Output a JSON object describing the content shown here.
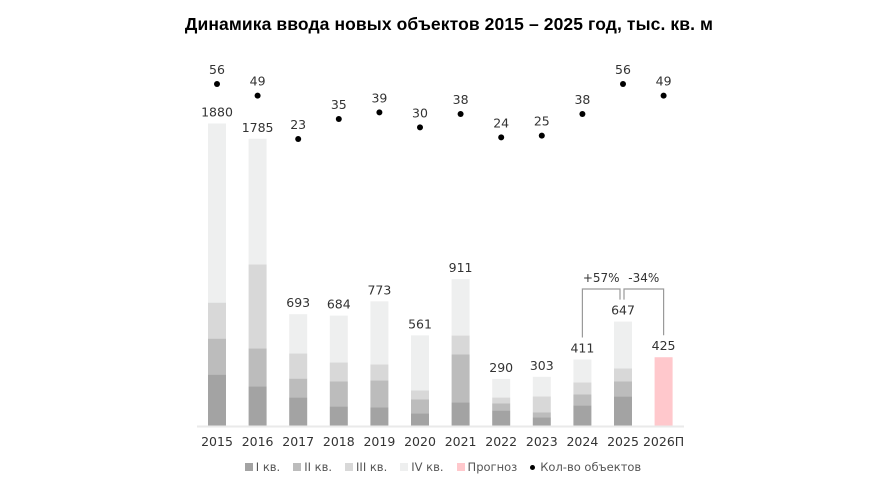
{
  "title": "Динамика ввода новых объектов 2015 – 2025 год, тыс. кв. м",
  "colors": {
    "q1": "#a3a3a3",
    "q2": "#bcbcbc",
    "q3": "#d8d8d8",
    "q4": "#eeefef",
    "forecast": "#ffc8cc",
    "dots": "#000000",
    "baseline": "#eaeaea",
    "bracket": "#9a9a9a",
    "label": "#333333"
  },
  "legend": [
    {
      "key": "q1",
      "label": "I кв."
    },
    {
      "key": "q2",
      "label": "II кв."
    },
    {
      "key": "q3",
      "label": "III кв."
    },
    {
      "key": "q4",
      "label": "IV кв."
    },
    {
      "key": "forecast",
      "label": "Прогноз"
    },
    {
      "key": "dots",
      "label": "Кол-во объектов"
    }
  ],
  "annotations": [
    {
      "text": "+57%",
      "from": "2024",
      "to": "2025"
    },
    {
      "text": "-34%",
      "from": "2025",
      "to": "2026П"
    }
  ],
  "chart_data": {
    "type": "bar",
    "stacked": true,
    "title": "Динамика ввода новых объектов 2015 – 2025 год, тыс. кв. м",
    "xlabel": "",
    "ylabel": "",
    "grid": false,
    "legend_position": "bottom",
    "categories": [
      "2015",
      "2016",
      "2017",
      "2018",
      "2019",
      "2020",
      "2021",
      "2022",
      "2023",
      "2024",
      "2025",
      "2026П"
    ],
    "totals": [
      1880,
      1785,
      693,
      684,
      773,
      561,
      911,
      290,
      303,
      411,
      647,
      425
    ],
    "series": [
      {
        "name": "I кв.",
        "values": [
          317,
          243,
          174,
          118,
          112,
          75,
          143,
          93,
          50,
          125,
          181,
          null
        ]
      },
      {
        "name": "II кв.",
        "values": [
          224,
          237,
          118,
          156,
          168,
          87,
          299,
          44,
          31,
          68,
          93,
          null
        ]
      },
      {
        "name": "III кв.",
        "values": [
          224,
          523,
          156,
          118,
          100,
          56,
          118,
          37,
          100,
          75,
          81,
          null
        ]
      },
      {
        "name": "IV кв.",
        "values": [
          1115,
          782,
          245,
          292,
          393,
          343,
          351,
          116,
          122,
          143,
          292,
          null
        ]
      },
      {
        "name": "Прогноз",
        "values": [
          null,
          null,
          null,
          null,
          null,
          null,
          null,
          null,
          null,
          null,
          null,
          425
        ]
      },
      {
        "name": "Кол-во объектов",
        "type": "scatter",
        "values": [
          56,
          49,
          23,
          35,
          39,
          30,
          38,
          24,
          25,
          38,
          56,
          49
        ]
      }
    ],
    "annotations": [
      {
        "text": "+57%",
        "between": [
          "2024",
          "2025"
        ]
      },
      {
        "text": "-34%",
        "between": [
          "2025",
          "2026П"
        ]
      }
    ]
  }
}
